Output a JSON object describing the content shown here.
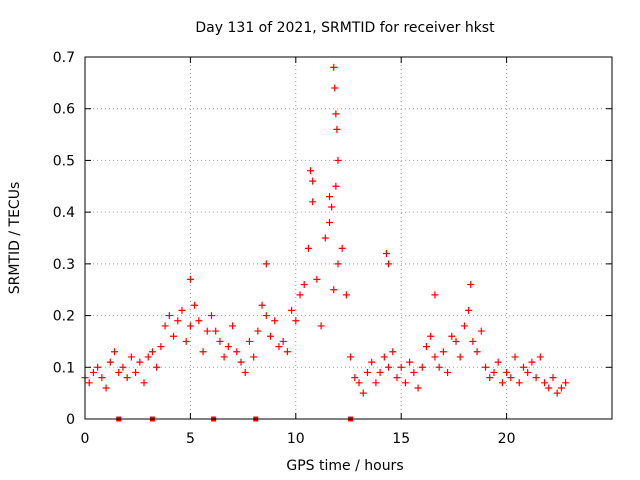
{
  "chart_data": {
    "type": "scatter",
    "title": "Day 131 of 2021, SRMTID for receiver hkst",
    "xlabel": "GPS time / hours",
    "ylabel": "SRMTID / TECUs",
    "xlim": [
      0,
      25
    ],
    "ylim": [
      0,
      0.7
    ],
    "grid": true,
    "marker": "+",
    "color": "#ff0000",
    "x_ticks": [
      0,
      5,
      10,
      15,
      20
    ],
    "y_ticks": [
      "0",
      "0.1",
      "0.2",
      "0.3",
      "0.4",
      "0.5",
      "0.6",
      "0.7"
    ],
    "x_tick_labels": [
      "0",
      "5",
      "10",
      "15",
      "20"
    ],
    "y_tick_labels": [
      "0",
      "0.1",
      "0.2",
      "0.3",
      "0.4",
      "0.5",
      "0.6",
      "0.7"
    ],
    "baseline_markers_x": [
      1.6,
      3.2,
      6.1,
      8.1,
      12.6
    ],
    "series": [
      {
        "name": "SRMTID",
        "x": [
          0.0,
          0.2,
          0.4,
          0.6,
          0.8,
          1.0,
          1.2,
          1.4,
          1.6,
          1.8,
          2.0,
          2.2,
          2.4,
          2.6,
          2.8,
          3.0,
          3.2,
          3.4,
          3.6,
          3.8,
          4.0,
          4.2,
          4.4,
          4.6,
          4.8,
          5.0,
          5.2,
          5.4,
          5.6,
          5.8,
          6.0,
          6.2,
          6.4,
          6.6,
          6.8,
          7.0,
          7.2,
          7.4,
          7.6,
          7.8,
          8.0,
          8.2,
          8.4,
          8.6,
          8.8,
          9.0,
          9.2,
          9.4,
          9.6,
          9.8,
          10.0,
          10.2,
          10.4,
          10.6,
          10.8,
          11.0,
          11.2,
          11.4,
          11.6,
          11.8,
          12.0,
          12.2,
          12.4,
          12.6,
          12.8,
          13.0,
          13.2,
          13.4,
          13.6,
          13.8,
          14.0,
          14.2,
          14.4,
          14.6,
          14.8,
          15.0,
          15.2,
          15.4,
          15.6,
          15.8,
          16.0,
          16.2,
          16.4,
          16.6,
          16.8,
          17.0,
          17.2,
          17.4,
          17.6,
          17.8,
          18.0,
          18.2,
          18.4,
          18.6,
          18.8,
          19.0,
          19.2,
          19.4,
          19.6,
          19.8,
          20.0,
          20.2,
          20.4,
          20.6,
          20.8,
          21.0,
          21.2,
          21.4,
          21.6,
          21.8,
          22.0,
          22.2,
          22.4,
          22.6,
          22.8,
          11.8,
          11.85,
          11.9,
          11.95,
          12.0,
          11.9,
          10.7,
          10.8,
          11.6,
          11.7,
          14.3,
          14.4,
          5.0,
          8.6,
          18.3,
          16.6
        ],
        "y": [
          0.08,
          0.07,
          0.09,
          0.1,
          0.08,
          0.06,
          0.11,
          0.13,
          0.09,
          0.1,
          0.08,
          0.12,
          0.09,
          0.11,
          0.07,
          0.12,
          0.13,
          0.1,
          0.14,
          0.18,
          0.2,
          0.16,
          0.19,
          0.21,
          0.15,
          0.18,
          0.22,
          0.19,
          0.13,
          0.17,
          0.2,
          0.17,
          0.15,
          0.12,
          0.14,
          0.18,
          0.13,
          0.11,
          0.09,
          0.15,
          0.12,
          0.17,
          0.22,
          0.2,
          0.16,
          0.19,
          0.14,
          0.15,
          0.13,
          0.21,
          0.19,
          0.24,
          0.26,
          0.33,
          0.42,
          0.27,
          0.18,
          0.35,
          0.38,
          0.25,
          0.3,
          0.33,
          0.24,
          0.12,
          0.08,
          0.07,
          0.05,
          0.09,
          0.11,
          0.07,
          0.09,
          0.12,
          0.1,
          0.13,
          0.08,
          0.1,
          0.07,
          0.11,
          0.09,
          0.06,
          0.1,
          0.14,
          0.16,
          0.12,
          0.1,
          0.13,
          0.09,
          0.16,
          0.15,
          0.12,
          0.18,
          0.21,
          0.15,
          0.13,
          0.17,
          0.1,
          0.08,
          0.09,
          0.11,
          0.07,
          0.09,
          0.08,
          0.12,
          0.07,
          0.1,
          0.09,
          0.11,
          0.08,
          0.12,
          0.07,
          0.06,
          0.08,
          0.05,
          0.06,
          0.07,
          0.68,
          0.64,
          0.59,
          0.56,
          0.5,
          0.45,
          0.48,
          0.46,
          0.43,
          0.41,
          0.32,
          0.3,
          0.27,
          0.3,
          0.26,
          0.24
        ]
      }
    ]
  }
}
